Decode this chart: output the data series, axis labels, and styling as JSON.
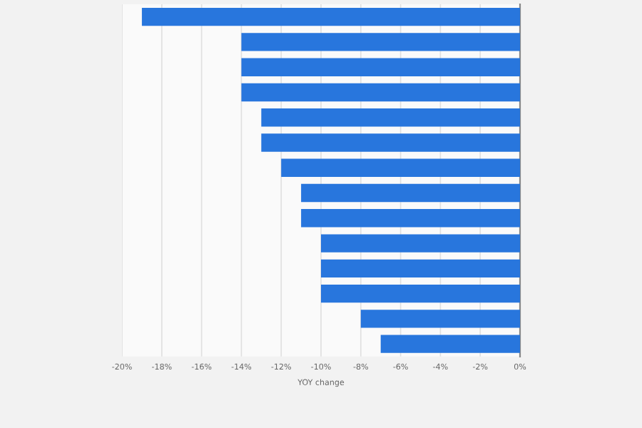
{
  "chart_data": {
    "type": "bar",
    "orientation": "horizontal",
    "xlabel": "YOY change",
    "categories": [
      null,
      null,
      null,
      null,
      null,
      null,
      null,
      null,
      null,
      null,
      null,
      null,
      null,
      null
    ],
    "values": [
      -19,
      -14,
      -14,
      -14,
      -13,
      -13,
      -12,
      -11,
      -11,
      -10,
      -10,
      -10,
      -8,
      -7
    ],
    "color": "#2876dd",
    "xlim": [
      -20,
      0
    ],
    "xticks": [
      {
        "value": -20,
        "label": "-20%"
      },
      {
        "value": -18,
        "label": "-18%"
      },
      {
        "value": -16,
        "label": "-16%"
      },
      {
        "value": -14,
        "label": "-14%"
      },
      {
        "value": -12,
        "label": "-12%"
      },
      {
        "value": -10,
        "label": "-10%"
      },
      {
        "value": -8,
        "label": "-8%"
      },
      {
        "value": -6,
        "label": "-6%"
      },
      {
        "value": -4,
        "label": "-4%"
      },
      {
        "value": -2,
        "label": "-2%"
      },
      {
        "value": 0,
        "label": "0%"
      }
    ],
    "grid": "x",
    "tick_labels": "x"
  }
}
